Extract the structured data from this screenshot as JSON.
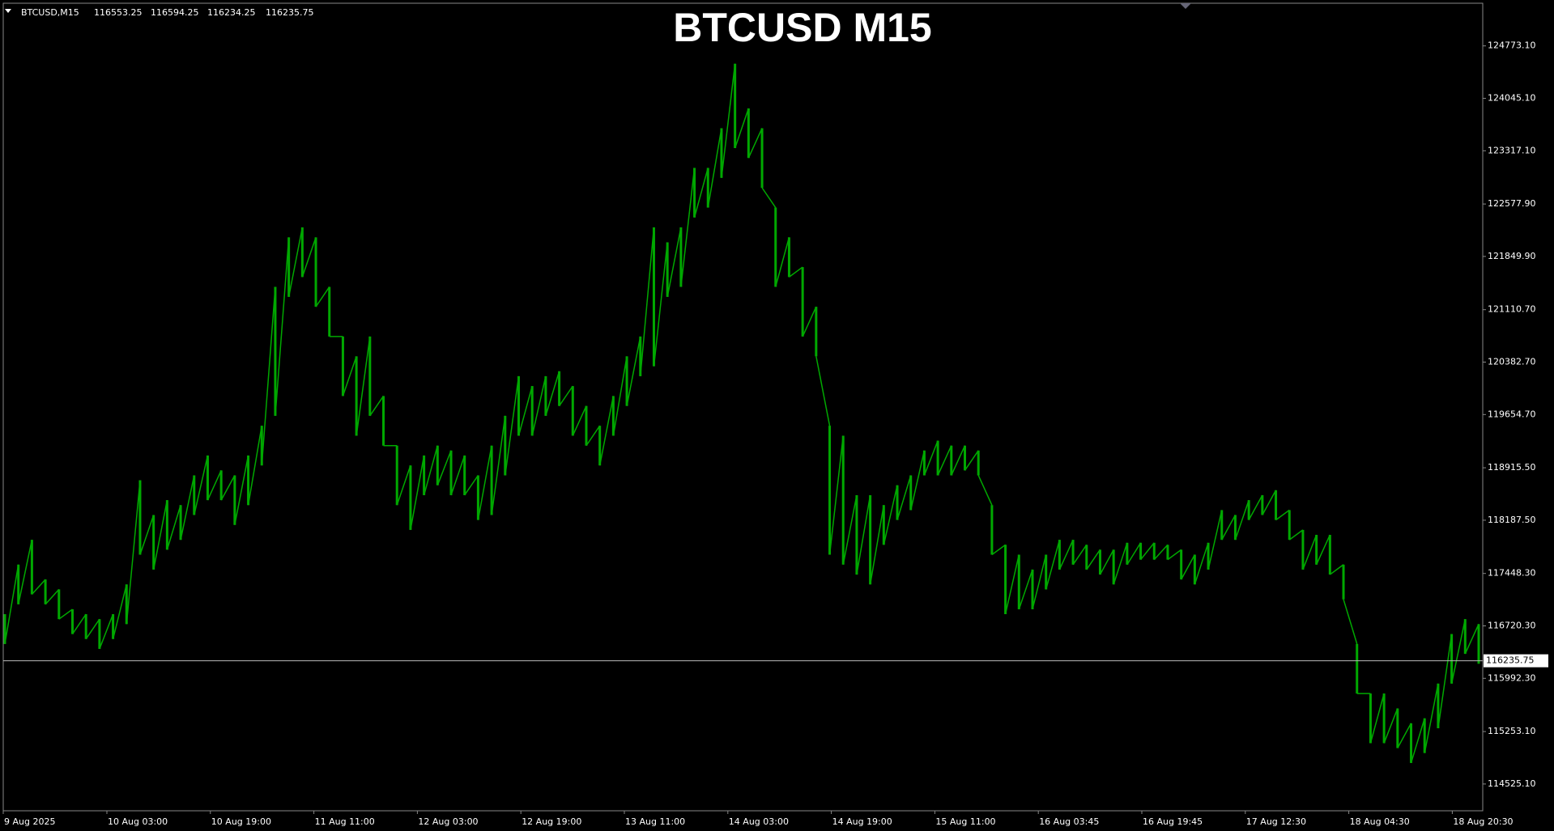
{
  "chart_data": {
    "type": "range_bar",
    "title": "BTCUSD M15",
    "symbol": "BTCUSD,M15",
    "ohlc": [
      116553.25,
      116594.25,
      116234.25,
      116235.75
    ],
    "last_price": 116235.75,
    "color": "#00a800",
    "ylim": [
      114153.2,
      125365.4
    ],
    "yticks": [
      {
        "value": 124773.1,
        "label": "124773.10"
      },
      {
        "value": 124045.1,
        "label": "124045.10"
      },
      {
        "value": 123317.1,
        "label": "123317.10"
      },
      {
        "value": 122577.9,
        "label": "122577.90"
      },
      {
        "value": 121849.9,
        "label": "121849.90"
      },
      {
        "value": 121110.7,
        "label": "121110.70"
      },
      {
        "value": 120382.7,
        "label": "120382.70"
      },
      {
        "value": 119654.7,
        "label": "119654.70"
      },
      {
        "value": 118915.5,
        "label": "118915.50"
      },
      {
        "value": 118187.5,
        "label": "118187.50"
      },
      {
        "value": 117448.3,
        "label": "117448.30"
      },
      {
        "value": 116720.3,
        "label": "116720.30"
      },
      {
        "value": 115992.3,
        "label": "115992.30"
      },
      {
        "value": 115253.1,
        "label": "115253.10"
      },
      {
        "value": 114525.1,
        "label": "114525.10"
      }
    ],
    "x_labels": [
      "9 Aug 2025",
      "10 Aug 03:00",
      "10 Aug 19:00",
      "11 Aug 11:00",
      "12 Aug 03:00",
      "12 Aug 19:00",
      "13 Aug 11:00",
      "14 Aug 03:00",
      "14 Aug 19:00",
      "15 Aug 11:00",
      "16 Aug 03:45",
      "16 Aug 19:45",
      "17 Aug 12:30",
      "18 Aug 04:30",
      "18 Aug 20:30"
    ],
    "high": [
      116883,
      117571,
      117915,
      117365,
      117227,
      116951,
      116883,
      116814,
      116883,
      117296,
      118742,
      118260,
      118466,
      118397,
      118810,
      119086,
      118879,
      118810,
      119086,
      119499,
      121427,
      122115,
      122253,
      122115,
      121427,
      120738,
      120463,
      120738,
      119912,
      119223,
      118948,
      119086,
      119223,
      119155,
      119086,
      118810,
      119223,
      119637,
      120187,
      120050,
      120187,
      120256,
      120050,
      119774,
      119499,
      119912,
      120463,
      120738,
      122253,
      122046,
      122253,
      123079,
      123079,
      123630,
      124525,
      123905,
      123630,
      122528,
      122115,
      121702,
      121151,
      119499,
      119361,
      118535,
      118535,
      118397,
      118673,
      118810,
      119155,
      119292,
      119223,
      119223,
      119155,
      118397,
      117846,
      117709,
      117502,
      117709,
      117915,
      117915,
      117846,
      117778,
      117778,
      117874,
      117874,
      117874,
      117846,
      117778,
      117709,
      117874,
      118328,
      118260,
      118466,
      118535,
      118604,
      118328,
      118053,
      117984,
      117984,
      117571,
      116469,
      115781,
      115781,
      115574,
      115368,
      115437,
      115919,
      116607,
      116814,
      116745
    ],
    "low": [
      116469,
      117020,
      117158,
      117020,
      116814,
      116607,
      116538,
      116401,
      116538,
      116745,
      117709,
      117502,
      117778,
      117915,
      118260,
      118466,
      118466,
      118122,
      118397,
      118948,
      119637,
      121289,
      121564,
      121151,
      120738,
      119912,
      119361,
      119637,
      119223,
      118397,
      118053,
      118535,
      118673,
      118535,
      118535,
      118191,
      118260,
      118810,
      119361,
      119361,
      119637,
      119774,
      119361,
      119223,
      118948,
      119361,
      119774,
      120187,
      120325,
      121289,
      121427,
      122391,
      122528,
      122941,
      123354,
      123217,
      122804,
      121427,
      121564,
      120738,
      120463,
      117709,
      117571,
      117433,
      117296,
      117846,
      118191,
      118328,
      118810,
      118810,
      118810,
      118879,
      118810,
      117709,
      116883,
      116951,
      116951,
      117227,
      117502,
      117571,
      117502,
      117433,
      117296,
      117571,
      117640,
      117640,
      117640,
      117365,
      117296,
      117502,
      117915,
      117915,
      118191,
      118260,
      118191,
      117915,
      117502,
      117571,
      117433,
      117089,
      115781,
      115092,
      115092,
      115024,
      114817,
      114955,
      115299,
      115919,
      116332,
      116194
    ]
  }
}
